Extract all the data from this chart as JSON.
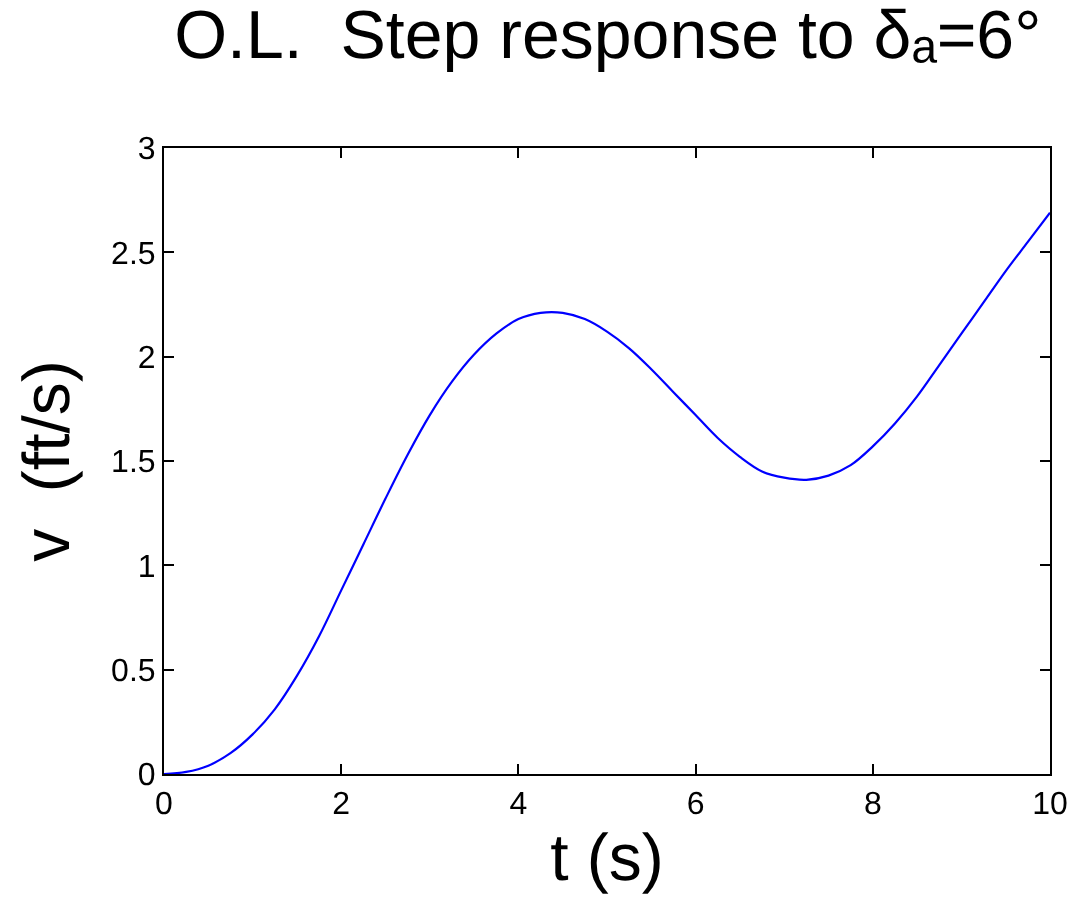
{
  "chart_data": {
    "type": "line",
    "title": "O.L.  Step response to δₐ=6°",
    "xlabel": "t (s)",
    "ylabel": "v  (ft/s)",
    "x": [
      0,
      0.25,
      0.5,
      0.75,
      1.0,
      1.25,
      1.5,
      1.75,
      2.0,
      2.25,
      2.5,
      2.75,
      3.0,
      3.25,
      3.5,
      3.75,
      4.0,
      4.25,
      4.5,
      4.75,
      5.0,
      5.25,
      5.5,
      5.75,
      6.0,
      6.25,
      6.5,
      6.75,
      7.0,
      7.25,
      7.5,
      7.75,
      8.0,
      8.25,
      8.5,
      8.75,
      9.0,
      9.25,
      9.5,
      9.75,
      10.0
    ],
    "series": [
      {
        "color": "#0000ff",
        "values": [
          0,
          0.01,
          0.04,
          0.1,
          0.19,
          0.31,
          0.47,
          0.66,
          0.88,
          1.1,
          1.32,
          1.53,
          1.72,
          1.88,
          2.01,
          2.11,
          2.18,
          2.21,
          2.21,
          2.18,
          2.12,
          2.04,
          1.94,
          1.83,
          1.72,
          1.61,
          1.52,
          1.45,
          1.42,
          1.41,
          1.43,
          1.48,
          1.57,
          1.68,
          1.81,
          1.96,
          2.11,
          2.26,
          2.41,
          2.55,
          2.69
        ]
      }
    ],
    "xlim": [
      0,
      10
    ],
    "ylim": [
      0,
      3
    ],
    "xticks": [
      0,
      2,
      4,
      6,
      8,
      10
    ],
    "yticks": [
      0,
      0.5,
      1,
      1.5,
      2,
      2.5,
      3
    ],
    "line_style": "solid"
  }
}
